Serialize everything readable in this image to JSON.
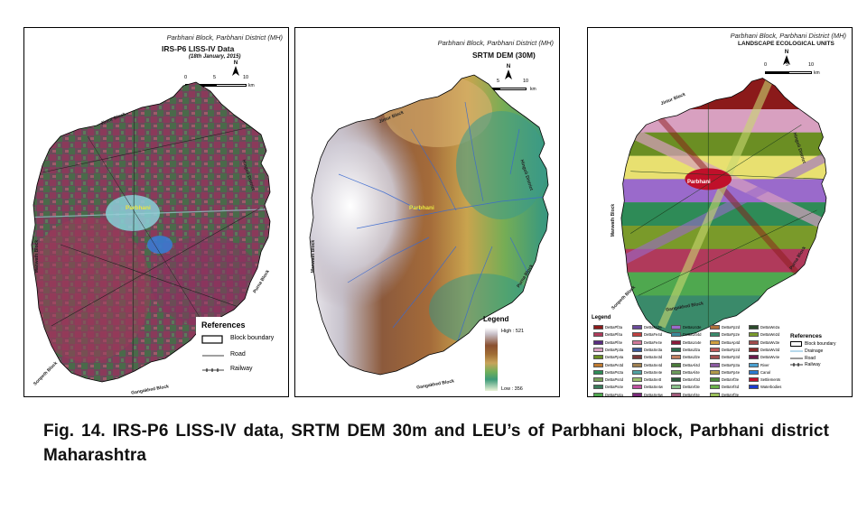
{
  "panel1": {
    "subtitle": "Parbhani Block, Parbhani District (MH)",
    "title": "IRS-P6 LISS-IV Data",
    "date": "(18th January, 2015)",
    "north_label": "N",
    "scale": {
      "s0": "0",
      "s5": "5",
      "s10": "10",
      "unit": "km"
    },
    "town": "Parbhani",
    "neighbors": {
      "top": "Jintur Block",
      "right": "Hingoli District",
      "left": "Manwath Block",
      "bottom_right": "Purna Block",
      "bottom": "Gangakhed Block",
      "bottom_left": "Sonpeth Block"
    },
    "references": {
      "title": "References",
      "items": [
        "Block boundary",
        "Road",
        "Railway"
      ]
    }
  },
  "panel2": {
    "subtitle": "Parbhani Block, Parbhani District (MH)",
    "title": "SRTM DEM (30M)",
    "north_label": "N",
    "scale": {
      "s0": "0",
      "s5": "5",
      "s10": "10",
      "unit": "km"
    },
    "town": "Parbhani",
    "neighbors": {
      "top": "Jintur Block",
      "right": "Hingoli District",
      "left": "Manwath Block",
      "bottom_right": "Purna Block",
      "bottom": "Gangakhed Block"
    },
    "legend": {
      "title": "Legend",
      "high": "High : 521",
      "low": "Low : 356"
    }
  },
  "panel3": {
    "subtitle": "Parbhani Block, Parbhani District (MH)",
    "title": "LANDSCAPE ECOLOGICAL UNITS",
    "north_label": "N",
    "scale": {
      "s0": "0",
      "s5": "5",
      "s10": "10",
      "unit": "km"
    },
    "town": "Parbhani",
    "neighbors": {
      "top": "Jintur Block",
      "right": "Hingoli District",
      "left": "Manwath Block",
      "bottom_right": "Purna Block",
      "bottom": "Gangakhed Block",
      "bottom_left": "Sonpeth Block"
    },
    "legend_title": "Legend",
    "legend_items": [
      {
        "label": "DeBaPf3a",
        "color": "#8b1a1a"
      },
      {
        "label": "DeBaPf4a",
        "color": "#b03a5b"
      },
      {
        "label": "DeBaPf4e",
        "color": "#5a2d82"
      },
      {
        "label": "DeBaPp3a",
        "color": "#d8a0c0"
      },
      {
        "label": "DeBaPp4a",
        "color": "#6b8e23"
      },
      {
        "label": "DeBaPe3d",
        "color": "#c07a30"
      },
      {
        "label": "DeBaPs3a",
        "color": "#2e8b57"
      },
      {
        "label": "DeBaPs4d",
        "color": "#7aa05a"
      },
      {
        "label": "DeBaPs4e",
        "color": "#3a7a5a"
      },
      {
        "label": "DeBaFs4a",
        "color": "#4fa84f"
      },
      {
        "label": "DeBaFs3d",
        "color": "#9a2a5a"
      },
      {
        "label": "DeBaFs3e",
        "color": "#6a4a9a"
      },
      {
        "label": "DeBaFe4d",
        "color": "#c04040"
      },
      {
        "label": "DeBaFe4e",
        "color": "#d07a9a"
      },
      {
        "label": "DeBaSe3a",
        "color": "#3a5a9a"
      },
      {
        "label": "DeBaSe3d",
        "color": "#7a3a3a"
      },
      {
        "label": "DeBaSe4d",
        "color": "#a08050"
      },
      {
        "label": "DeBaSe4e",
        "color": "#50a0a0"
      },
      {
        "label": "DeBaSe4t",
        "color": "#a0c070"
      },
      {
        "label": "DeBaSe4w",
        "color": "#c050a0"
      },
      {
        "label": "DeBaSe5w",
        "color": "#7a2a7a"
      },
      {
        "label": "DeBaUo3d",
        "color": "#4a3a8a"
      },
      {
        "label": "DeBaUo3e",
        "color": "#9a6acb"
      },
      {
        "label": "DeBaUo4d",
        "color": "#3a8a9a"
      },
      {
        "label": "DeBaUo4e",
        "color": "#8a1a3a"
      },
      {
        "label": "DeBaUl2a",
        "color": "#2a6a4a"
      },
      {
        "label": "DeBaUl2e",
        "color": "#c08060"
      },
      {
        "label": "DeBaAl4d",
        "color": "#4a7a3a"
      },
      {
        "label": "DeBaAl4e",
        "color": "#6a9a5a"
      },
      {
        "label": "DeBaVl3d",
        "color": "#2a5a3a"
      },
      {
        "label": "DeBaVl3e",
        "color": "#8ac08a"
      },
      {
        "label": "DeBaVl4e",
        "color": "#a05a7a"
      },
      {
        "label": "DeBaVl2a",
        "color": "#5a9a3a"
      },
      {
        "label": "DeBaFp2d",
        "color": "#b0703a"
      },
      {
        "label": "DeBaFp2e",
        "color": "#3a8a6a"
      },
      {
        "label": "DeBaAp4d",
        "color": "#d0a040"
      },
      {
        "label": "DeBaFp2d",
        "color": "#c05a5a"
      },
      {
        "label": "DeBaFp3d",
        "color": "#a05050"
      },
      {
        "label": "DeBaFp3a",
        "color": "#8a5aa0"
      },
      {
        "label": "DeBaFp4e",
        "color": "#b09a4a"
      },
      {
        "label": "DeBaVf3e",
        "color": "#4a8a3a"
      },
      {
        "label": "DeBaVf4d",
        "color": "#6ab04a"
      },
      {
        "label": "DeBaVf3e",
        "color": "#9ac05a"
      },
      {
        "label": "DeBaVf3d",
        "color": "#3a6a8a"
      },
      {
        "label": "DeBaWe2a",
        "color": "#2a4a2a"
      },
      {
        "label": "DeBaWe2d",
        "color": "#7a9a2a"
      },
      {
        "label": "DeBaWv3e",
        "color": "#a04a4a"
      },
      {
        "label": "DeBaWv3d",
        "color": "#8a2a2a"
      },
      {
        "label": "DeBaWv4e",
        "color": "#6a1a4a"
      },
      {
        "label": "River",
        "color": "#4aa0d0"
      },
      {
        "label": "Canal",
        "color": "#2a7ad0"
      },
      {
        "label": "Settlements",
        "color": "#c0102a"
      },
      {
        "label": "Waterbodies",
        "color": "#1a3ad0"
      }
    ],
    "references": {
      "title": "References",
      "items": [
        "Block boundary",
        "Drainage",
        "Road",
        "Railway"
      ]
    }
  },
  "caption": "Fig. 14. IRS-P6 LISS-IV data, SRTM DEM 30m and LEU’s of Parbhani block, Parbhani district Maharashtra"
}
